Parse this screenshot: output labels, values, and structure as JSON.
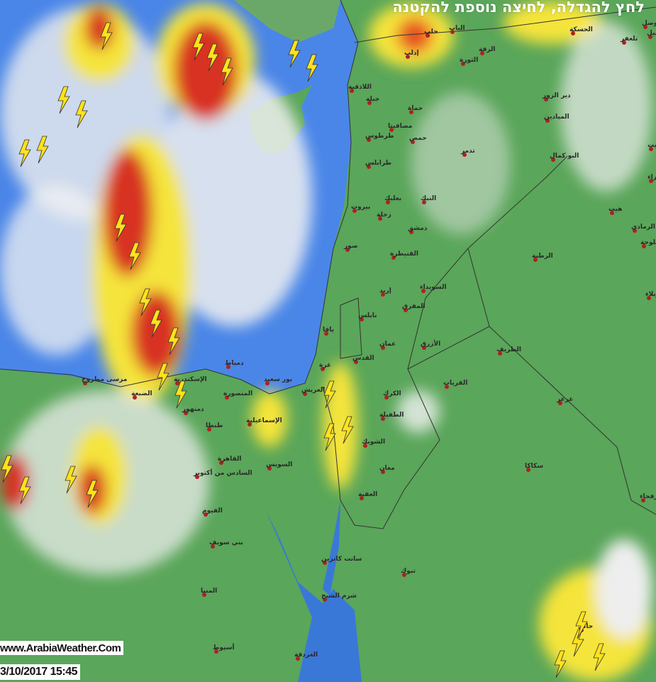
{
  "hint_text": "לחץ להגדלה, לחיצה נוספת להקטנה",
  "watermark": "www.ArabiaWeather.Com",
  "timestamp": "3/10/2017 15:45",
  "colors": {
    "land": "#5aa65a",
    "sea": "#4a86e8",
    "rain_light": "#f2f2f2",
    "rain_moderate": "#f5e43a",
    "rain_heavy": "#d83020",
    "lightning": "#ffe21a",
    "city_dot": "#b02020"
  },
  "cities": [
    "الموصل",
    "أربيل",
    "الحسكة",
    "تلعفر",
    "الباب",
    "حلب",
    "إدلب",
    "الرقة",
    "الثورة",
    "اللاذقية",
    "جبلة",
    "حماة",
    "مصافيتا",
    "حمص",
    "دير الزور",
    "الميادين",
    "طرطوس",
    "تدمر",
    "البو كمال",
    "تكريت",
    "طرابلس",
    "سامراء",
    "بعلبك",
    "النبك",
    "بيروت",
    "زحلة",
    "دمشق",
    "هيت",
    "الرمادي",
    "الفلوجة",
    "كربلاء",
    "صور",
    "القنيطرة",
    "الرطبة",
    "السويداء",
    "إربد",
    "المفرق",
    "نابلس",
    "يافا",
    "عمان",
    "الأزرق",
    "الطريف",
    "غزة",
    "القدس",
    "القريات",
    "مرسى مطروح",
    "دمياط",
    "بور سعيد",
    "الإسكندرية",
    "الضبعة",
    "المنصورة",
    "العريش",
    "الكرك",
    "عرعر",
    "دمنهور",
    "الطفيلة",
    "طنطا",
    "الإسماعيلية",
    "الشوبك",
    "القاهرة",
    "السويس",
    "معان",
    "سكاكا",
    "السادس من أكتوبر",
    "العقبة",
    "رفحاء",
    "الفيوم",
    "بني سويف",
    "سانت كاترين",
    "تبوك",
    "المنيا",
    "شرم الشيخ",
    "أسيوط",
    "الغردقة",
    "حائل"
  ]
}
